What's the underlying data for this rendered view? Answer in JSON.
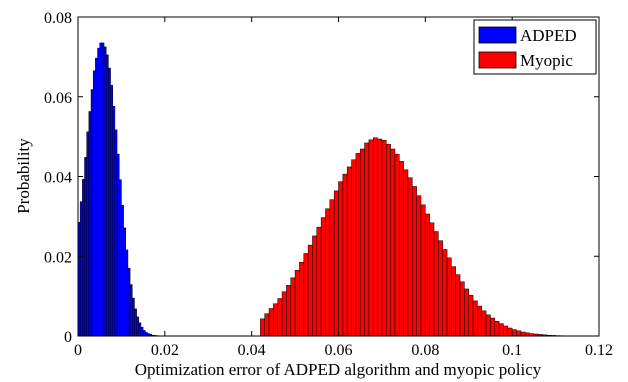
{
  "chart_data": {
    "type": "bar",
    "title": "",
    "xlabel": "Optimization error of ADPED algorithm and myopic policy",
    "ylabel": "Probability",
    "xlim": [
      0,
      0.12
    ],
    "ylim": [
      0,
      0.08
    ],
    "xticks": [
      "0",
      "0.02",
      "0.04",
      "0.06",
      "0.08",
      "0.1",
      "0.12"
    ],
    "yticks": [
      "0",
      "0.02",
      "0.04",
      "0.06",
      "0.08"
    ],
    "grid": false,
    "legend_position": "top-right",
    "series": [
      {
        "name": "ADPED",
        "color": "#0000ff",
        "bin_width": 0.0005,
        "x": [
          0.00025,
          0.00075,
          0.00125,
          0.00175,
          0.00225,
          0.00275,
          0.00325,
          0.00375,
          0.00425,
          0.00475,
          0.00525,
          0.00575,
          0.00625,
          0.00675,
          0.00725,
          0.00775,
          0.00825,
          0.00875,
          0.00925,
          0.00975,
          0.01025,
          0.01075,
          0.01125,
          0.01175,
          0.01225,
          0.01275,
          0.01325,
          0.01375,
          0.01425,
          0.01475,
          0.01525,
          0.01575,
          0.01625,
          0.01675,
          0.01725,
          0.01775,
          0.01825,
          0.01875,
          0.01925,
          0.01975
        ],
        "values": [
          0.0285,
          0.0337,
          0.0393,
          0.0448,
          0.0512,
          0.0563,
          0.0618,
          0.0665,
          0.0697,
          0.0722,
          0.0735,
          0.0735,
          0.0725,
          0.0705,
          0.0672,
          0.0629,
          0.0576,
          0.0517,
          0.0456,
          0.0392,
          0.0328,
          0.0271,
          0.0216,
          0.017,
          0.0129,
          0.0095,
          0.0068,
          0.0048,
          0.0033,
          0.0022,
          0.0014,
          0.0009,
          0.0006,
          0.0004,
          0.0002,
          0.00015,
          0.0001,
          5e-05,
          3e-05,
          2e-05
        ]
      },
      {
        "name": "Myopic",
        "color": "#ff0000",
        "bin_width": 0.001,
        "x": [
          0.0425,
          0.0435,
          0.0445,
          0.0455,
          0.0465,
          0.0475,
          0.0485,
          0.0495,
          0.0505,
          0.0515,
          0.0525,
          0.0535,
          0.0545,
          0.0555,
          0.0565,
          0.0575,
          0.0585,
          0.0595,
          0.0605,
          0.0615,
          0.0625,
          0.0635,
          0.0645,
          0.0655,
          0.0665,
          0.0675,
          0.0685,
          0.0695,
          0.0705,
          0.0715,
          0.0725,
          0.0735,
          0.0745,
          0.0755,
          0.0765,
          0.0775,
          0.0785,
          0.0795,
          0.0805,
          0.0815,
          0.0825,
          0.0835,
          0.0845,
          0.0855,
          0.0865,
          0.0875,
          0.0885,
          0.0895,
          0.0905,
          0.0915,
          0.0925,
          0.0935,
          0.0945,
          0.0955,
          0.0965,
          0.0975,
          0.0985,
          0.0995,
          0.1005,
          0.1015,
          0.1025,
          0.1035,
          0.1045,
          0.1055,
          0.1065,
          0.1075,
          0.1085,
          0.1095,
          0.1105,
          0.1115,
          0.1125,
          0.1135,
          0.1145
        ],
        "values": [
          0.0043,
          0.0056,
          0.0069,
          0.0081,
          0.0094,
          0.0111,
          0.0127,
          0.0146,
          0.0165,
          0.0185,
          0.0207,
          0.0228,
          0.0251,
          0.0273,
          0.0297,
          0.0319,
          0.0342,
          0.0364,
          0.0387,
          0.0406,
          0.0424,
          0.0442,
          0.0458,
          0.0469,
          0.0484,
          0.0492,
          0.0497,
          0.0494,
          0.0491,
          0.0481,
          0.0469,
          0.0456,
          0.0438,
          0.0417,
          0.0397,
          0.0375,
          0.0352,
          0.0329,
          0.0306,
          0.0284,
          0.0262,
          0.0239,
          0.0217,
          0.0196,
          0.0174,
          0.0154,
          0.0136,
          0.0118,
          0.0102,
          0.0088,
          0.0075,
          0.0063,
          0.0053,
          0.0045,
          0.0037,
          0.0031,
          0.0025,
          0.002,
          0.0016,
          0.0013,
          0.001,
          0.0008,
          0.0006,
          0.0005,
          0.0004,
          0.0003,
          0.0002,
          0.00015,
          0.0001,
          8e-05,
          5e-05,
          3e-05,
          2e-05
        ]
      }
    ]
  }
}
